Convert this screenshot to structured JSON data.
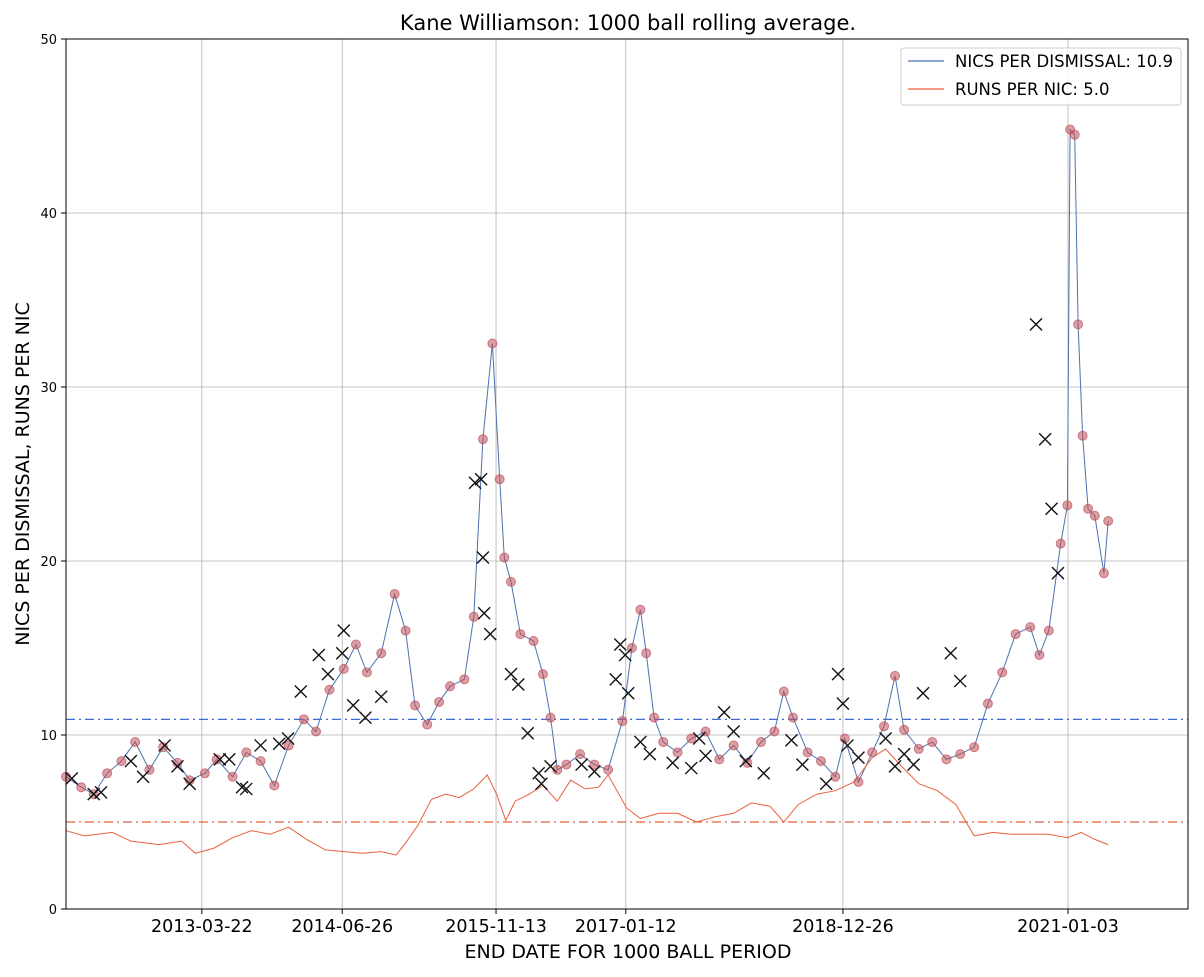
{
  "chart_data": {
    "type": "line",
    "title": "Kane Williamson: 1000 ball rolling average.",
    "xlabel": "END DATE FOR 1000 BALL PERIOD",
    "ylabel": "NICS PER DISMISSAL, RUNS PER NIC",
    "xlim": [
      "2012-01-01",
      "2022-02-01"
    ],
    "ylim": [
      0,
      50
    ],
    "x_tick_labels": [
      "2013-03-22",
      "2014-06-26",
      "2015-11-13",
      "2017-01-12",
      "2018-12-26",
      "2021-01-03"
    ],
    "y_ticks": [
      0,
      10,
      20,
      30,
      40,
      50
    ],
    "grid": true,
    "legend": {
      "position": "top-right",
      "entries": [
        {
          "label": "NICS PER DISMISSAL: 10.9",
          "color": "#4c72b0"
        },
        {
          "label": "RUNS PER NIC: 5.0",
          "color": "#e8603c"
        }
      ]
    },
    "reference_lines": [
      {
        "value": 10.9,
        "color": "#3b6fd8",
        "style": "dash-dot"
      },
      {
        "value": 5.0,
        "color": "#e8603c",
        "style": "dash-dot"
      }
    ],
    "series": [
      {
        "name": "NICS PER DISMISSAL: 10.9",
        "color": "#4c72b0",
        "points": [
          [
            "2012-01-01",
            7.6
          ],
          [
            "2012-02-20",
            7.0
          ],
          [
            "2012-04-01",
            6.6
          ],
          [
            "2012-05-15",
            7.8
          ],
          [
            "2012-07-01",
            8.5
          ],
          [
            "2012-08-15",
            9.6
          ],
          [
            "2012-10-01",
            8.0
          ],
          [
            "2012-11-15",
            9.3
          ],
          [
            "2013-01-01",
            8.4
          ],
          [
            "2013-02-10",
            7.4
          ],
          [
            "2013-04-01",
            7.8
          ],
          [
            "2013-05-10",
            8.6
          ],
          [
            "2013-07-01",
            7.6
          ],
          [
            "2013-08-15",
            9.0
          ],
          [
            "2013-10-01",
            8.5
          ],
          [
            "2013-11-15",
            7.1
          ],
          [
            "2014-01-01",
            9.4
          ],
          [
            "2014-02-20",
            10.9
          ],
          [
            "2014-04-01",
            10.2
          ],
          [
            "2014-05-15",
            12.6
          ],
          [
            "2014-07-01",
            13.8
          ],
          [
            "2014-08-10",
            15.2
          ],
          [
            "2014-09-15",
            13.6
          ],
          [
            "2014-11-01",
            14.7
          ],
          [
            "2014-12-15",
            18.1
          ],
          [
            "2015-01-20",
            16.0
          ],
          [
            "2015-02-20",
            11.7
          ],
          [
            "2015-04-01",
            10.6
          ],
          [
            "2015-05-10",
            11.9
          ],
          [
            "2015-06-15",
            12.8
          ],
          [
            "2015-08-01",
            13.2
          ],
          [
            "2015-09-01",
            16.8
          ],
          [
            "2015-10-01",
            27.0
          ],
          [
            "2015-11-01",
            32.5
          ],
          [
            "2015-11-25",
            24.7
          ],
          [
            "2015-12-10",
            20.2
          ],
          [
            "2016-01-01",
            18.8
          ],
          [
            "2016-02-01",
            15.8
          ],
          [
            "2016-03-15",
            15.4
          ],
          [
            "2016-04-15",
            13.5
          ],
          [
            "2016-05-10",
            11.0
          ],
          [
            "2016-06-01",
            8.0
          ],
          [
            "2016-07-01",
            8.3
          ],
          [
            "2016-08-15",
            8.9
          ],
          [
            "2016-10-01",
            8.3
          ],
          [
            "2016-11-15",
            8.0
          ],
          [
            "2017-01-01",
            10.8
          ],
          [
            "2017-02-01",
            15.0
          ],
          [
            "2017-03-01",
            17.2
          ],
          [
            "2017-03-20",
            14.7
          ],
          [
            "2017-04-15",
            11.0
          ],
          [
            "2017-05-15",
            9.6
          ],
          [
            "2017-07-01",
            9.0
          ],
          [
            "2017-08-15",
            9.8
          ],
          [
            "2017-10-01",
            10.2
          ],
          [
            "2017-11-15",
            8.6
          ],
          [
            "2018-01-01",
            9.4
          ],
          [
            "2018-02-15",
            8.4
          ],
          [
            "2018-04-01",
            9.6
          ],
          [
            "2018-05-15",
            10.2
          ],
          [
            "2018-06-15",
            12.5
          ],
          [
            "2018-07-15",
            11.0
          ],
          [
            "2018-09-01",
            9.0
          ],
          [
            "2018-10-15",
            8.5
          ],
          [
            "2018-12-01",
            7.6
          ],
          [
            "2019-01-01",
            9.8
          ],
          [
            "2019-02-15",
            7.3
          ],
          [
            "2019-04-01",
            9.0
          ],
          [
            "2019-05-10",
            10.5
          ],
          [
            "2019-06-15",
            13.4
          ],
          [
            "2019-07-15",
            10.3
          ],
          [
            "2019-09-01",
            9.2
          ],
          [
            "2019-10-15",
            9.6
          ],
          [
            "2019-12-01",
            8.6
          ],
          [
            "2020-01-15",
            8.9
          ],
          [
            "2020-03-01",
            9.3
          ],
          [
            "2020-04-15",
            11.8
          ],
          [
            "2020-06-01",
            13.6
          ],
          [
            "2020-07-15",
            15.8
          ],
          [
            "2020-09-01",
            16.2
          ],
          [
            "2020-10-01",
            14.6
          ],
          [
            "2020-11-01",
            16.0
          ],
          [
            "2020-12-10",
            21.0
          ],
          [
            "2021-01-01",
            23.2
          ],
          [
            "2021-01-10",
            44.8
          ],
          [
            "2021-01-25",
            44.5
          ],
          [
            "2021-02-05",
            33.6
          ],
          [
            "2021-02-20",
            27.2
          ],
          [
            "2021-03-10",
            23.0
          ],
          [
            "2021-04-01",
            22.6
          ],
          [
            "2021-05-01",
            19.3
          ],
          [
            "2021-05-15",
            22.3
          ]
        ]
      },
      {
        "name": "RUNS PER NIC: 5.0",
        "color": "#e8603c",
        "points": [
          [
            "2012-01-01",
            4.5
          ],
          [
            "2012-03-01",
            4.2
          ],
          [
            "2012-06-01",
            4.4
          ],
          [
            "2012-08-01",
            3.9
          ],
          [
            "2012-11-01",
            3.7
          ],
          [
            "2013-01-15",
            3.9
          ],
          [
            "2013-03-01",
            3.2
          ],
          [
            "2013-05-01",
            3.5
          ],
          [
            "2013-07-01",
            4.1
          ],
          [
            "2013-09-01",
            4.5
          ],
          [
            "2013-11-01",
            4.3
          ],
          [
            "2014-01-01",
            4.7
          ],
          [
            "2014-03-01",
            4.0
          ],
          [
            "2014-05-01",
            3.4
          ],
          [
            "2014-07-01",
            3.3
          ],
          [
            "2014-09-01",
            3.2
          ],
          [
            "2014-11-01",
            3.3
          ],
          [
            "2014-12-20",
            3.1
          ],
          [
            "2015-01-20",
            3.8
          ],
          [
            "2015-03-01",
            4.8
          ],
          [
            "2015-04-15",
            6.3
          ],
          [
            "2015-06-01",
            6.6
          ],
          [
            "2015-07-15",
            6.4
          ],
          [
            "2015-09-01",
            6.9
          ],
          [
            "2015-10-15",
            7.7
          ],
          [
            "2015-11-15",
            6.6
          ],
          [
            "2015-12-15",
            5.1
          ],
          [
            "2016-01-15",
            6.2
          ],
          [
            "2016-03-01",
            6.6
          ],
          [
            "2016-04-15",
            7.1
          ],
          [
            "2016-06-01",
            6.2
          ],
          [
            "2016-07-15",
            7.4
          ],
          [
            "2016-09-01",
            6.9
          ],
          [
            "2016-10-15",
            7.0
          ],
          [
            "2016-11-15",
            7.7
          ],
          [
            "2017-01-15",
            5.8
          ],
          [
            "2017-03-01",
            5.2
          ],
          [
            "2017-05-01",
            5.5
          ],
          [
            "2017-07-01",
            5.5
          ],
          [
            "2017-09-01",
            5.0
          ],
          [
            "2017-11-01",
            5.3
          ],
          [
            "2018-01-01",
            5.5
          ],
          [
            "2018-03-01",
            6.1
          ],
          [
            "2018-05-01",
            5.9
          ],
          [
            "2018-06-15",
            5.0
          ],
          [
            "2018-08-01",
            6.0
          ],
          [
            "2018-10-01",
            6.6
          ],
          [
            "2018-12-01",
            6.8
          ],
          [
            "2019-02-01",
            7.3
          ],
          [
            "2019-04-01",
            8.7
          ],
          [
            "2019-05-15",
            9.2
          ],
          [
            "2019-07-01",
            8.3
          ],
          [
            "2019-09-01",
            7.2
          ],
          [
            "2019-11-01",
            6.8
          ],
          [
            "2020-01-01",
            6.0
          ],
          [
            "2020-03-01",
            4.2
          ],
          [
            "2020-05-01",
            4.4
          ],
          [
            "2020-07-01",
            4.3
          ],
          [
            "2020-09-01",
            4.3
          ],
          [
            "2020-11-01",
            4.3
          ],
          [
            "2021-01-01",
            4.1
          ],
          [
            "2021-02-15",
            4.4
          ],
          [
            "2021-04-01",
            4.0
          ],
          [
            "2021-05-15",
            3.7
          ]
        ]
      }
    ],
    "dismissal_markers": {
      "marker": "x",
      "color": "#111111",
      "points": [
        [
          "2012-01-20",
          7.5
        ],
        [
          "2012-04-01",
          6.6
        ],
        [
          "2012-04-25",
          6.7
        ],
        [
          "2012-08-01",
          8.5
        ],
        [
          "2012-09-10",
          7.6
        ],
        [
          "2012-11-20",
          9.4
        ],
        [
          "2013-01-01",
          8.2
        ],
        [
          "2013-02-10",
          7.2
        ],
        [
          "2013-05-20",
          8.6
        ],
        [
          "2013-06-20",
          8.6
        ],
        [
          "2013-08-01",
          7.0
        ],
        [
          "2013-08-15",
          6.9
        ],
        [
          "2013-10-01",
          9.4
        ],
        [
          "2013-12-01",
          9.5
        ],
        [
          "2013-12-30",
          9.8
        ],
        [
          "2014-02-10",
          12.5
        ],
        [
          "2014-04-10",
          14.6
        ],
        [
          "2014-05-10",
          13.5
        ],
        [
          "2014-06-26",
          14.7
        ],
        [
          "2014-07-01",
          16.0
        ],
        [
          "2014-08-01",
          11.7
        ],
        [
          "2014-09-10",
          11.0
        ],
        [
          "2014-11-01",
          12.2
        ],
        [
          "2015-09-05",
          24.5
        ],
        [
          "2015-09-25",
          24.7
        ],
        [
          "2015-10-01",
          20.2
        ],
        [
          "2015-10-05",
          17.0
        ],
        [
          "2015-10-25",
          15.8
        ],
        [
          "2016-01-01",
          13.5
        ],
        [
          "2016-01-25",
          12.9
        ],
        [
          "2016-02-25",
          10.1
        ],
        [
          "2016-04-01",
          7.8
        ],
        [
          "2016-04-10",
          7.2
        ],
        [
          "2016-05-10",
          8.2
        ],
        [
          "2016-08-20",
          8.3
        ],
        [
          "2016-10-01",
          7.9
        ],
        [
          "2016-12-10",
          13.2
        ],
        [
          "2016-12-25",
          15.2
        ],
        [
          "2017-01-10",
          14.6
        ],
        [
          "2017-01-20",
          12.4
        ],
        [
          "2017-03-01",
          9.6
        ],
        [
          "2017-04-01",
          8.9
        ],
        [
          "2017-06-15",
          8.4
        ],
        [
          "2017-08-15",
          8.1
        ],
        [
          "2017-09-10",
          9.8
        ],
        [
          "2017-10-01",
          8.8
        ],
        [
          "2017-12-01",
          11.3
        ],
        [
          "2018-01-01",
          10.2
        ],
        [
          "2018-02-10",
          8.5
        ],
        [
          "2018-04-10",
          7.8
        ],
        [
          "2018-07-10",
          9.7
        ],
        [
          "2018-08-15",
          8.3
        ],
        [
          "2018-11-01",
          7.2
        ],
        [
          "2018-12-10",
          13.5
        ],
        [
          "2018-12-26",
          11.8
        ],
        [
          "2019-01-10",
          9.4
        ],
        [
          "2019-02-15",
          8.7
        ],
        [
          "2019-05-15",
          9.8
        ],
        [
          "2019-06-15",
          8.2
        ],
        [
          "2019-07-15",
          8.9
        ],
        [
          "2019-08-15",
          8.3
        ],
        [
          "2019-09-15",
          12.4
        ],
        [
          "2019-12-15",
          14.7
        ],
        [
          "2020-01-15",
          13.1
        ],
        [
          "2020-09-20",
          33.6
        ],
        [
          "2020-10-20",
          27.0
        ],
        [
          "2020-11-10",
          23.0
        ],
        [
          "2020-12-01",
          19.3
        ]
      ]
    }
  }
}
